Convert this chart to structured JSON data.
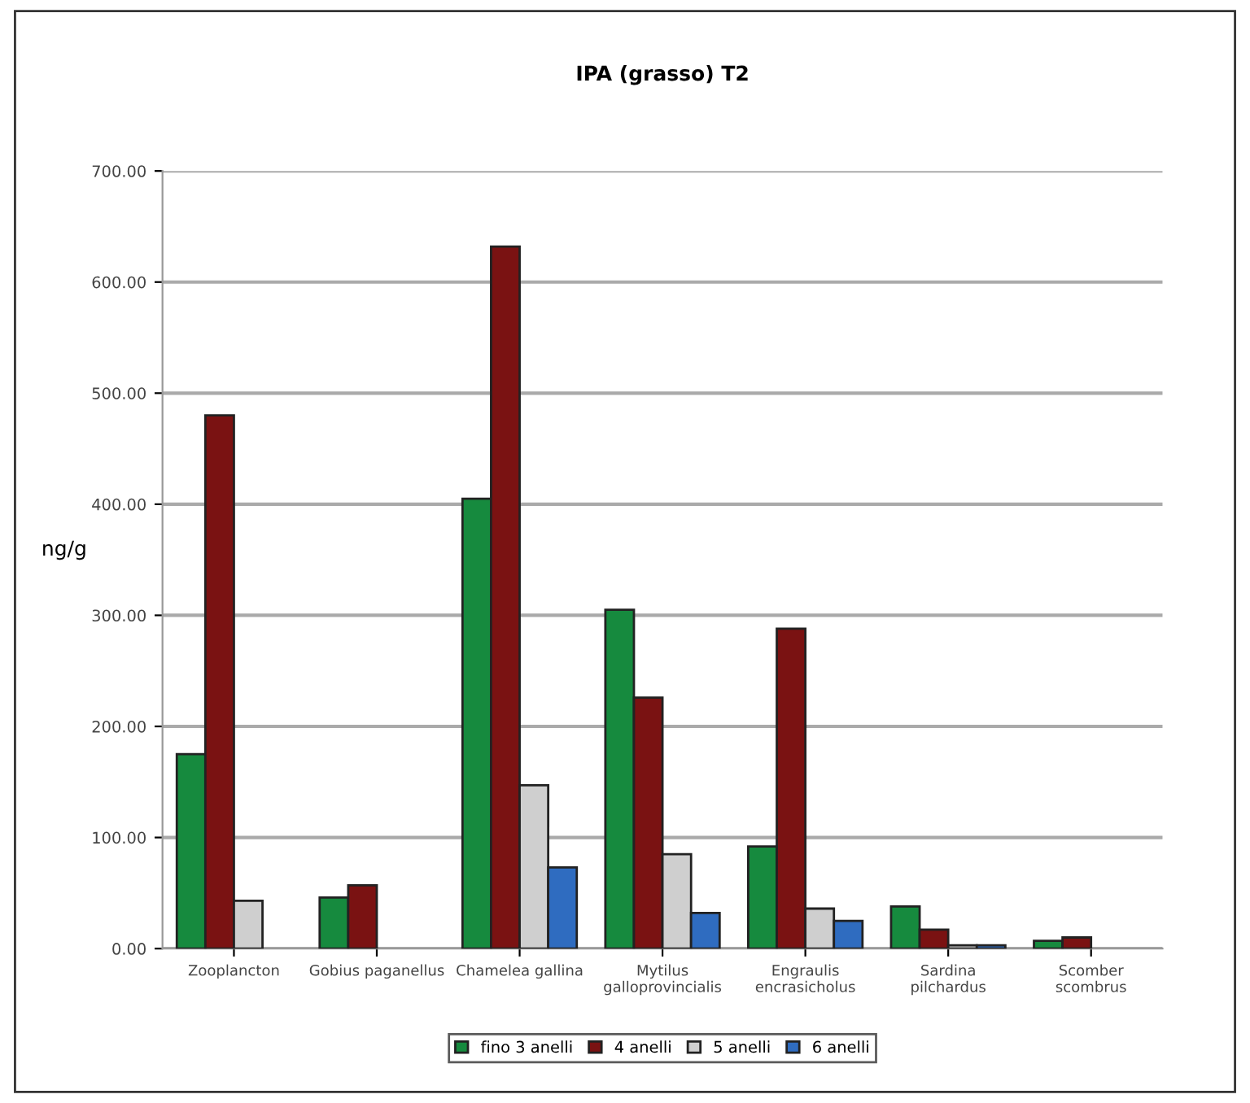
{
  "chart_data": {
    "type": "bar",
    "title": "IPA (grasso) T2",
    "ylabel": "ng/g",
    "categories": [
      "Zooplancton",
      "Gobius paganellus",
      "Chamelea gallina",
      "Mytilus\ngalloprovincialis",
      "Engraulis\nencrasicholus",
      "Sardina\npilchardus",
      "Scomber\nscombrus"
    ],
    "series": [
      {
        "name": "fino 3 anelli",
        "color": "#168a3e",
        "values": [
          175,
          46,
          405,
          305,
          92,
          38,
          7
        ]
      },
      {
        "name": "4 anelli",
        "color": "#7a1212",
        "values": [
          480,
          57,
          632,
          226,
          288,
          17,
          10
        ]
      },
      {
        "name": "5 anelli",
        "color": "#cfcfcf",
        "values": [
          43,
          null,
          147,
          85,
          36,
          3,
          null
        ]
      },
      {
        "name": "6 anelli",
        "color": "#2f6cc0",
        "values": [
          null,
          null,
          73,
          32,
          25,
          3,
          null
        ]
      }
    ],
    "ylim": [
      0,
      700
    ],
    "yticks": [
      {
        "value": 0,
        "label": "0.00"
      },
      {
        "value": 100,
        "label": "100.00"
      },
      {
        "value": 200,
        "label": "200.00"
      },
      {
        "value": 300,
        "label": "300.00"
      },
      {
        "value": 400,
        "label": "400.00"
      },
      {
        "value": 500,
        "label": "500.00"
      },
      {
        "value": 600,
        "label": "600.00"
      },
      {
        "value": 700,
        "label": "700.00"
      }
    ],
    "grid": "y",
    "legend": "bottom"
  }
}
